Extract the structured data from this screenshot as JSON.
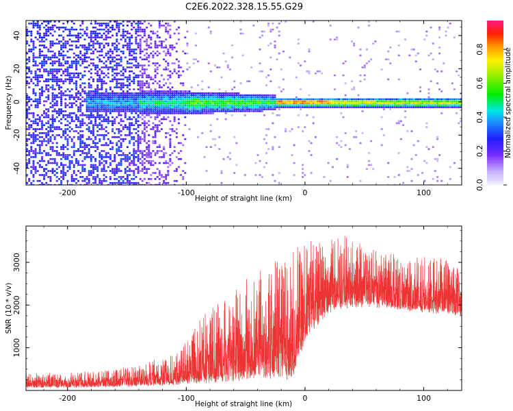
{
  "figure": {
    "title": "C2E6.2022.328.15.55.G29"
  },
  "chart_data": [
    {
      "type": "heatmap",
      "xlabel": "Height of straight line (km)",
      "ylabel": "Frequency (Hz)",
      "xlim": [
        -235,
        132
      ],
      "ylim": [
        -50,
        49
      ],
      "x_ticks": [
        -200,
        -100,
        0,
        100
      ],
      "y_ticks": [
        -40,
        -20,
        0,
        20,
        40
      ],
      "colorbar": {
        "label": "Normalized spectral amplitude",
        "range": [
          0.0,
          0.97
        ],
        "ticks": [
          0.0,
          0.2,
          0.4,
          0.6,
          0.8
        ]
      },
      "band": {
        "center_hz": 0,
        "regions": [
          {
            "x_start": -235,
            "x_end": -140,
            "description": "diffuse purple noise, full frequency range"
          },
          {
            "x_start": -140,
            "x_end": -100,
            "description": "noise fading, band emerging"
          },
          {
            "x_start": -100,
            "x_end": -25,
            "description": "band ~ +/-8 Hz, amplitude 0.3-0.5"
          },
          {
            "x_start": -25,
            "x_end": 132,
            "description": "narrow band ~ +/-3 Hz, peak amplitude ~0.9 near -25 to 20 km"
          }
        ]
      }
    },
    {
      "type": "line",
      "xlabel": "Height of straight line (km)",
      "ylabel": "SNR (10 * v/v)",
      "xlim": [
        -235,
        132
      ],
      "ylim": [
        0,
        3850
      ],
      "x_ticks": [
        -200,
        -100,
        0,
        100
      ],
      "y_ticks": [
        1000,
        2000,
        3000
      ],
      "series_color": "#ee3333",
      "envelope": {
        "x": [
          -235,
          -200,
          -160,
          -130,
          -110,
          -95,
          -85,
          -70,
          -55,
          -40,
          -30,
          -20,
          -15,
          -10,
          -5,
          0,
          10,
          20,
          30,
          50,
          70,
          90,
          110,
          132
        ],
        "low": [
          60,
          60,
          80,
          100,
          120,
          150,
          150,
          170,
          200,
          230,
          250,
          250,
          200,
          300,
          700,
          1100,
          1500,
          1800,
          1900,
          1950,
          1900,
          1850,
          1800,
          1750
        ],
        "high": [
          400,
          420,
          500,
          700,
          900,
          1400,
          1800,
          2200,
          2600,
          2900,
          3000,
          3050,
          3150,
          3300,
          3450,
          3550,
          3650,
          3700,
          3650,
          3450,
          3250,
          3150,
          3100,
          3050
        ]
      }
    }
  ]
}
